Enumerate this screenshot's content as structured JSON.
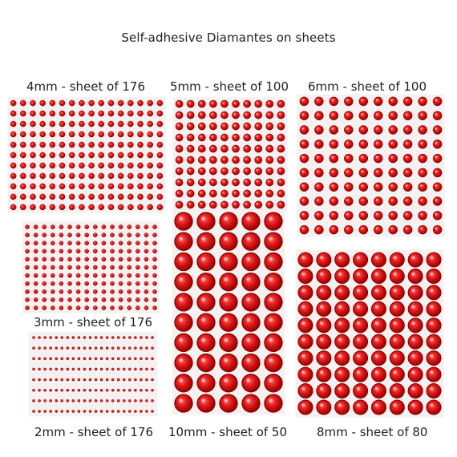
{
  "title": "Self-adhesive Diamantes on sheets",
  "colors": {
    "gem": "#e01818",
    "gem_dark": "#8c0000",
    "gem_light": "#ff6060",
    "sheet": "#f6f1f1"
  },
  "sheets": {
    "s4": {
      "label": "4mm - sheet of 176"
    },
    "s5": {
      "label": "5mm - sheet of 100"
    },
    "s6": {
      "label": "6mm - sheet of 100"
    },
    "s3": {
      "label": "3mm - sheet of 176"
    },
    "s2": {
      "label": "2mm - sheet of 176"
    },
    "s10": {
      "label": "10mm - sheet of 50"
    },
    "s8": {
      "label": "8mm - sheet of 80"
    }
  }
}
